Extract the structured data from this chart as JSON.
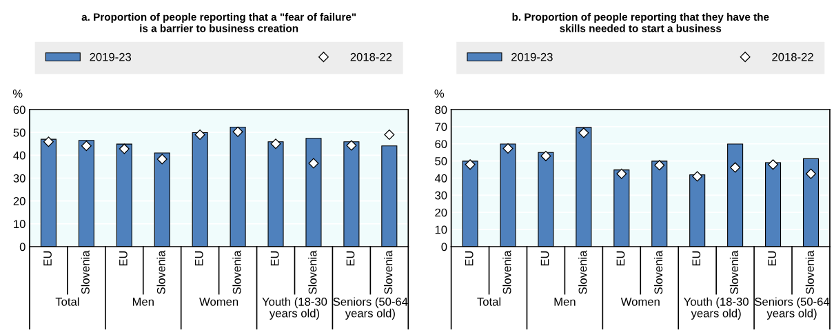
{
  "chart_data": [
    {
      "type": "bar",
      "title": "a. Proportion of people reporting that a \"fear of failure\"\nis a barrier to business creation",
      "ylabel": "%",
      "categories": [
        "EU",
        "Slovenia",
        "EU",
        "Slovenia",
        "EU",
        "Slovenia",
        "EU",
        "Slovenia",
        "EU",
        "Slovenia"
      ],
      "series": [
        {
          "name": "2019-23",
          "color": "#4f81bd",
          "values": [
            47.0,
            46.5,
            44.9,
            41.0,
            49.9,
            52.3,
            45.9,
            47.4,
            45.9,
            44.1
          ]
        },
        {
          "name": "2018-22",
          "type": "scatter",
          "marker": "diamond",
          "color": "#ffffff",
          "values": [
            45.9,
            44.1,
            42.8,
            38.3,
            49.0,
            50.3,
            45.0,
            36.5,
            44.3,
            49.0
          ]
        }
      ],
      "annotations": [
        "Total",
        "Men",
        "Women",
        "Youth (18-30\nyears old)",
        "Seniors (50-64\nyears old)"
      ],
      "ylim": [
        0,
        60
      ],
      "yticks": [
        0,
        10,
        20,
        30,
        40,
        50,
        60
      ],
      "grid": "y",
      "legend": "top"
    },
    {
      "type": "bar",
      "title": "b. Proportion of people reporting that they have the\nskills needed to start a business",
      "ylabel": "%",
      "categories": [
        "EU",
        "Slovenia",
        "EU",
        "Slovenia",
        "EU",
        "Slovenia",
        "EU",
        "Slovenia",
        "EU",
        "Slovenia"
      ],
      "series": [
        {
          "name": "2019-23",
          "color": "#4f81bd",
          "values": [
            49.9,
            59.9,
            55.0,
            69.6,
            44.8,
            49.9,
            41.9,
            59.9,
            49.0,
            51.3
          ]
        },
        {
          "name": "2018-22",
          "type": "scatter",
          "marker": "diamond",
          "color": "#ffffff",
          "values": [
            47.9,
            57.3,
            52.9,
            66.4,
            42.5,
            47.5,
            41.0,
            46.2,
            47.9,
            42.5
          ]
        }
      ],
      "annotations": [
        "Total",
        "Men",
        "Women",
        "Youth (18-30\nyears old)",
        "Seniors (50-64\nyears old)"
      ],
      "ylim": [
        0,
        80
      ],
      "yticks": [
        0,
        10,
        20,
        30,
        40,
        50,
        60,
        70,
        80
      ],
      "grid": "y",
      "legend": "top"
    }
  ]
}
